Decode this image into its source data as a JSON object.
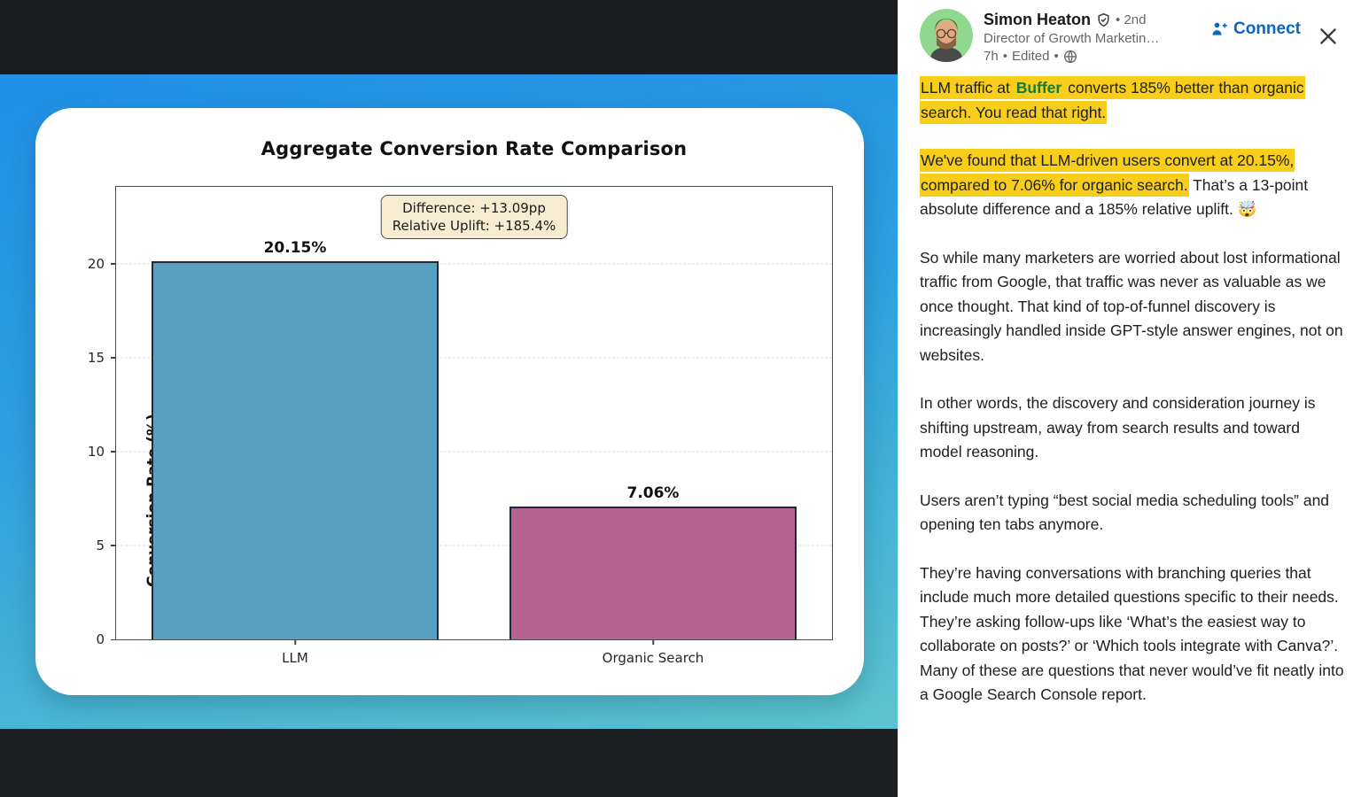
{
  "post": {
    "author": {
      "name": "Simon Heaton",
      "degree": "2nd",
      "headline": "Director of Growth Marketin…",
      "time": "7h",
      "edited": "Edited",
      "separator": "•"
    },
    "connect_label": "Connect",
    "paragraphs": [
      {
        "segments": [
          {
            "text": "LLM traffic at ",
            "highlight": true
          },
          {
            "text": "Buffer",
            "highlight": true,
            "bold": true,
            "green": true
          },
          {
            "text": " converts 185% better than organic search. You read that right.",
            "highlight": true
          }
        ]
      },
      {
        "segments": [
          {
            "text": "We've found that LLM-driven users convert at 20.15%, compared to 7.06% for organic search.",
            "highlight": true
          },
          {
            "text": " That’s a 13-point absolute difference and a 185% relative uplift. 🤯"
          }
        ]
      },
      {
        "segments": [
          {
            "text": "So while many marketers are worried about lost informational traffic from Google, that traffic was never as valuable as we once thought. That kind of top-of-funnel discovery is increasingly handled inside GPT-style answer engines, not on websites."
          }
        ]
      },
      {
        "segments": [
          {
            "text": "In other words, the discovery and consideration journey is shifting upstream, away from search results and toward model reasoning."
          }
        ]
      },
      {
        "segments": [
          {
            "text": "Users aren’t typing “best social media scheduling tools” and opening ten tabs anymore."
          }
        ]
      },
      {
        "segments": [
          {
            "text": "They’re having conversations with branching queries that include much more detailed questions specific to their needs. They’re asking follow-ups like ‘What’s the easiest way to collaborate on posts?’ or ‘Which tools integrate with Canva?’. Many of these are questions that never would’ve fit neatly into a Google Search Console report."
          }
        ]
      }
    ]
  },
  "chart_data": {
    "type": "bar",
    "title": "Aggregate Conversion Rate Comparison",
    "xlabel": "",
    "ylabel": "Conversion Rate (%)",
    "categories": [
      "LLM",
      "Organic Search"
    ],
    "values": [
      20.15,
      7.06
    ],
    "value_labels": [
      "20.15%",
      "7.06%"
    ],
    "ylim": [
      0,
      24.1
    ],
    "yticks": [
      0,
      5,
      10,
      15,
      20
    ],
    "grid": "horizontal-dashed",
    "legend": "none",
    "annotation": {
      "line1": "Difference: +13.09pp",
      "line2": "Relative Uplift: +185.4%"
    },
    "bar_colors": [
      "#57a0c0",
      "#b4628f"
    ],
    "bar_edge_color": "#1c2b3a",
    "bar_centers_pct": [
      25,
      75
    ],
    "bar_width_pct": 40
  },
  "colors": {
    "highlight_yellow": "#f8ce1b",
    "buffer_green": "#187b33",
    "linkedin_blue": "#0a66c2",
    "gradient_top": "#2090e8",
    "gradient_bottom": "#5cc4cf",
    "letterbox_dark": "#1b1c20"
  }
}
